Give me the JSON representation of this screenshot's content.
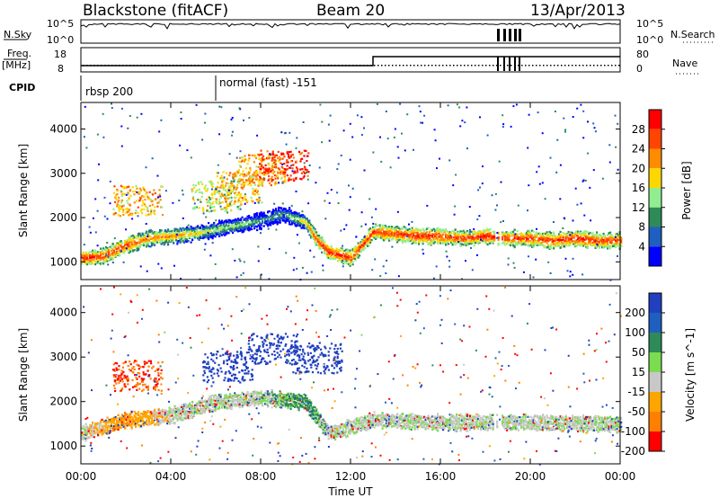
{
  "header": {
    "station": "Blackstone (fitACF)",
    "beam": "Beam 20",
    "date": "13/Apr/2013"
  },
  "info_panels": {
    "nsky_label": "N.Sky",
    "nsky_ticks": [
      "10^5",
      "10^0"
    ],
    "nsearch_label": "N.Search",
    "freq_label": "Freq.",
    "freq_unit": "[MHz]",
    "freq_ticks": [
      "18",
      "8"
    ],
    "nave_label": "Nave",
    "nave_ticks": [
      "80",
      "0"
    ],
    "cpid_label": "CPID",
    "cpid_segments": [
      {
        "start_hour": 0,
        "label": "rbsp 200"
      },
      {
        "start_hour": 6,
        "label": "normal (fast) -151"
      }
    ]
  },
  "chart_data": [
    {
      "type": "heatmap",
      "title": "",
      "xlabel": "",
      "ylabel": "Slant Range [km]",
      "x_ticks": [
        "00:00",
        "04:00",
        "08:00",
        "12:00",
        "16:00",
        "20:00",
        "00:00"
      ],
      "xlim_hours": [
        0,
        24
      ],
      "ylim_km": [
        600,
        4600
      ],
      "y_ticks": [
        1000,
        2000,
        3000,
        4000
      ],
      "colorbar": {
        "label": "Power [dB]",
        "ticks": [
          4,
          8,
          12,
          16,
          20,
          24,
          28
        ],
        "range": [
          0,
          32
        ],
        "colors": [
          "#0000ff",
          "#1f5fbf",
          "#2e8b57",
          "#90ee90",
          "#ffd700",
          "#ff8c00",
          "#ff4500",
          "#ff0000"
        ]
      },
      "main_layer": [
        {
          "hour": 0.0,
          "range_km": 1100,
          "value": 30
        },
        {
          "hour": 1.0,
          "range_km": 1150,
          "value": 28
        },
        {
          "hour": 2.0,
          "range_km": 1400,
          "value": 28
        },
        {
          "hour": 3.0,
          "range_km": 1550,
          "value": 24
        },
        {
          "hour": 4.0,
          "range_km": 1600,
          "value": 24
        },
        {
          "hour": 5.0,
          "range_km": 1650,
          "value": 20
        },
        {
          "hour": 6.0,
          "range_km": 1750,
          "value": 16
        },
        {
          "hour": 7.0,
          "range_km": 1850,
          "value": 16
        },
        {
          "hour": 8.0,
          "range_km": 1950,
          "value": 12
        },
        {
          "hour": 9.0,
          "range_km": 2100,
          "value": 12
        },
        {
          "hour": 10.0,
          "range_km": 1900,
          "value": 20
        },
        {
          "hour": 10.5,
          "range_km": 1500,
          "value": 28
        },
        {
          "hour": 11.0,
          "range_km": 1250,
          "value": 30
        },
        {
          "hour": 12.0,
          "range_km": 1100,
          "value": 28
        },
        {
          "hour": 13.0,
          "range_km": 1700,
          "value": 28
        },
        {
          "hour": 14.0,
          "range_km": 1650,
          "value": 28
        },
        {
          "hour": 15.0,
          "range_km": 1600,
          "value": 30
        },
        {
          "hour": 16.0,
          "range_km": 1600,
          "value": 28
        },
        {
          "hour": 17.0,
          "range_km": 1550,
          "value": 28
        },
        {
          "hour": 18.0,
          "range_km": 1600,
          "value": 30
        },
        {
          "hour": 19.0,
          "range_km": 1550,
          "value": 28
        },
        {
          "hour": 20.0,
          "range_km": 1550,
          "value": 28
        },
        {
          "hour": 21.0,
          "range_km": 1500,
          "value": 28
        },
        {
          "hour": 22.0,
          "range_km": 1550,
          "value": 30
        },
        {
          "hour": 23.0,
          "range_km": 1500,
          "value": 28
        },
        {
          "hour": 24.0,
          "range_km": 1500,
          "value": 28
        }
      ],
      "upper_layer": [
        {
          "hour": 6.0,
          "range_km": 2500,
          "value": 16
        },
        {
          "hour": 7.0,
          "range_km": 2700,
          "value": 20
        },
        {
          "hour": 8.0,
          "range_km": 3100,
          "value": 20
        },
        {
          "hour": 9.0,
          "range_km": 3200,
          "value": 28
        },
        {
          "hour": 2.5,
          "range_km": 2400,
          "value": 20
        }
      ]
    },
    {
      "type": "heatmap",
      "title": "",
      "xlabel": "Time UT",
      "ylabel": "Slant Range [km]",
      "x_ticks": [
        "00:00",
        "04:00",
        "08:00",
        "12:00",
        "16:00",
        "20:00",
        "00:00"
      ],
      "xlim_hours": [
        0,
        24
      ],
      "ylim_km": [
        600,
        4600
      ],
      "y_ticks": [
        1000,
        2000,
        3000,
        4000
      ],
      "colorbar": {
        "label": "Velocity [m s^-1]",
        "ticks": [
          200,
          100,
          50,
          15,
          -15,
          -50,
          -100,
          -200
        ],
        "colors": [
          "#2040c0",
          "#1f5fbf",
          "#2e8b57",
          "#7cdc50",
          "#c8c8c8",
          "#ffa500",
          "#ff7f00",
          "#ff0000"
        ]
      },
      "main_layer": [
        {
          "hour": 0.0,
          "range_km": 1300,
          "value": 0
        },
        {
          "hour": 2.0,
          "range_km": 1600,
          "value": -50
        },
        {
          "hour": 4.0,
          "range_km": 1700,
          "value": 0
        },
        {
          "hour": 6.0,
          "range_km": 2000,
          "value": 0
        },
        {
          "hour": 8.0,
          "range_km": 2100,
          "value": 0
        },
        {
          "hour": 10.0,
          "range_km": 2000,
          "value": 30
        },
        {
          "hour": 11.0,
          "range_km": 1300,
          "value": 0
        },
        {
          "hour": 13.0,
          "range_km": 1600,
          "value": 0
        },
        {
          "hour": 16.0,
          "range_km": 1550,
          "value": 0
        },
        {
          "hour": 20.0,
          "range_km": 1550,
          "value": 0
        },
        {
          "hour": 24.0,
          "range_km": 1500,
          "value": 0
        }
      ],
      "upper_layer": [
        {
          "hour": 2.5,
          "range_km": 2600,
          "value": -100
        },
        {
          "hour": 6.5,
          "range_km": 2800,
          "value": 200
        },
        {
          "hour": 8.5,
          "range_km": 3200,
          "value": 150
        },
        {
          "hour": 10.5,
          "range_km": 3000,
          "value": 200
        }
      ]
    }
  ]
}
